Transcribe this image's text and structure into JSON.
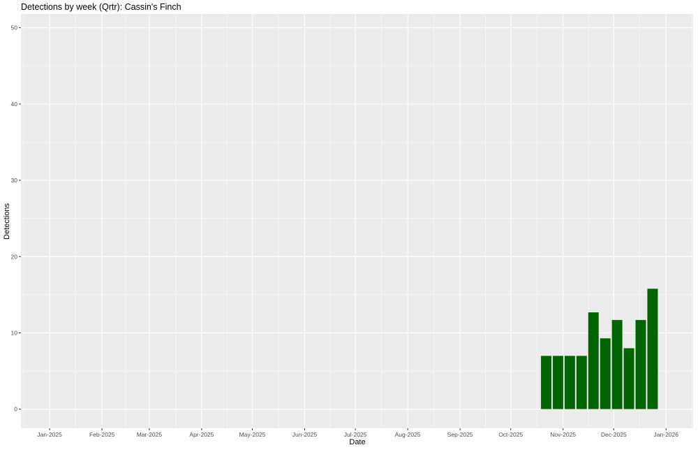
{
  "chart_data": {
    "type": "bar",
    "title": "Detections by week (Qrtr): Cassin's Finch",
    "xlabel": "Date",
    "ylabel": "Detections",
    "xlim": [
      "2024-12-15",
      "2026-01-17"
    ],
    "ylim": [
      -2.5,
      51.8
    ],
    "grid": true,
    "bar_color": "#006400",
    "panel_color": "#EBEBEB",
    "x_ticks": [
      "2025-01-01",
      "2025-02-01",
      "2025-03-01",
      "2025-04-01",
      "2025-05-01",
      "2025-06-01",
      "2025-07-01",
      "2025-08-01",
      "2025-09-01",
      "2025-10-01",
      "2025-11-01",
      "2025-12-01",
      "2026-01-01"
    ],
    "x_tick_labels": [
      "Jan-2025",
      "Feb-2025",
      "Mar-2025",
      "Apr-2025",
      "May-2025",
      "Jun-2025",
      "Jul-2025",
      "Aug-2025",
      "Sep-2025",
      "Oct-2025",
      "Nov-2025",
      "Dec-2025",
      "Jan-2026"
    ],
    "y_ticks": [
      0,
      10,
      20,
      30,
      40,
      50
    ],
    "y_tick_labels": [
      "0",
      "10",
      "20",
      "30",
      "40",
      "50"
    ],
    "x": [
      "2025-10-22",
      "2025-10-29",
      "2025-11-05",
      "2025-11-12",
      "2025-11-19",
      "2025-11-26",
      "2025-12-03",
      "2025-12-10",
      "2025-12-17",
      "2025-12-24"
    ],
    "values": [
      7,
      7,
      7,
      7,
      12.7,
      9.3,
      11.7,
      8,
      11.7,
      15.8
    ]
  }
}
